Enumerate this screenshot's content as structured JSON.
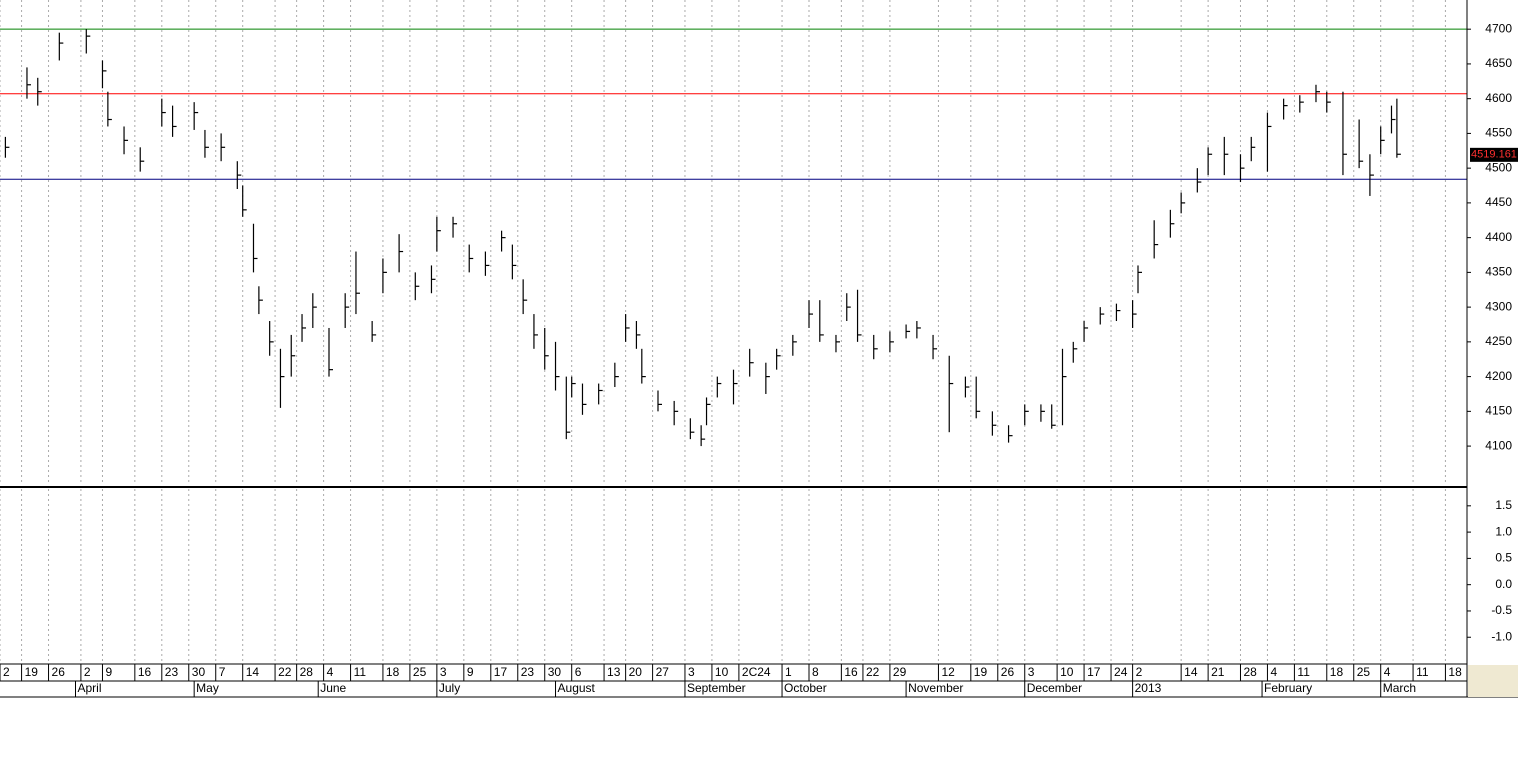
{
  "chart_data": [
    {
      "type": "ohlc",
      "color": "#000000",
      "xlim": [
        0,
        272
      ],
      "ylim": [
        4044,
        4742
      ],
      "yticks": [
        4100,
        4150,
        4200,
        4250,
        4300,
        4350,
        4400,
        4450,
        4500,
        4550,
        4600,
        4650,
        4700
      ],
      "hlines": [
        {
          "value": 4700,
          "color": "#008000"
        },
        {
          "value": 4607,
          "color": "#ff0000"
        },
        {
          "value": 4484,
          "color": "#000080"
        }
      ],
      "last_price": 4519.161,
      "xticks": [
        {
          "value": 0,
          "label": "2"
        },
        {
          "value": 4,
          "label": "19"
        },
        {
          "value": 9,
          "label": "26"
        },
        {
          "value": 15,
          "label": "2"
        },
        {
          "value": 19,
          "label": "9"
        },
        {
          "value": 25,
          "label": "16"
        },
        {
          "value": 30,
          "label": "23"
        },
        {
          "value": 35,
          "label": "30"
        },
        {
          "value": 40,
          "label": "7"
        },
        {
          "value": 45,
          "label": "14"
        },
        {
          "value": 51,
          "label": "22"
        },
        {
          "value": 55,
          "label": "28"
        },
        {
          "value": 60,
          "label": "4"
        },
        {
          "value": 65,
          "label": "11"
        },
        {
          "value": 71,
          "label": "18"
        },
        {
          "value": 76,
          "label": "25"
        },
        {
          "value": 81,
          "label": "3"
        },
        {
          "value": 86,
          "label": "9"
        },
        {
          "value": 91,
          "label": "17"
        },
        {
          "value": 96,
          "label": "23"
        },
        {
          "value": 101,
          "label": "30"
        },
        {
          "value": 106,
          "label": "6"
        },
        {
          "value": 112,
          "label": "13"
        },
        {
          "value": 116,
          "label": "20"
        },
        {
          "value": 121,
          "label": "27"
        },
        {
          "value": 127,
          "label": "3"
        },
        {
          "value": 132,
          "label": "10"
        },
        {
          "value": 137,
          "label": "2C24"
        },
        {
          "value": 145,
          "label": "1"
        },
        {
          "value": 150,
          "label": "8"
        },
        {
          "value": 156,
          "label": "16"
        },
        {
          "value": 160,
          "label": "22"
        },
        {
          "value": 165,
          "label": "29"
        },
        {
          "value": 174,
          "label": "12"
        },
        {
          "value": 180,
          "label": "19"
        },
        {
          "value": 185,
          "label": "26"
        },
        {
          "value": 190,
          "label": "3"
        },
        {
          "value": 196,
          "label": "10"
        },
        {
          "value": 201,
          "label": "17"
        },
        {
          "value": 206,
          "label": "24"
        },
        {
          "value": 210,
          "label": "2"
        },
        {
          "value": 219,
          "label": "14"
        },
        {
          "value": 224,
          "label": "21"
        },
        {
          "value": 230,
          "label": "28"
        },
        {
          "value": 235,
          "label": "4"
        },
        {
          "value": 240,
          "label": "11"
        },
        {
          "value": 246,
          "label": "18"
        },
        {
          "value": 251,
          "label": "25"
        },
        {
          "value": 256,
          "label": "4"
        },
        {
          "value": 262,
          "label": "11"
        },
        {
          "value": 268,
          "label": "18"
        }
      ],
      "month_ticks": [
        {
          "value": 14,
          "label": "April"
        },
        {
          "value": 36,
          "label": "May"
        },
        {
          "value": 59,
          "label": "June"
        },
        {
          "value": 81,
          "label": "July"
        },
        {
          "value": 103,
          "label": "August"
        },
        {
          "value": 127,
          "label": "September"
        },
        {
          "value": 145,
          "label": "October"
        },
        {
          "value": 168,
          "label": "November"
        },
        {
          "value": 190,
          "label": "December"
        },
        {
          "value": 210,
          "label": "2013"
        },
        {
          "value": 234,
          "label": "February"
        },
        {
          "value": 256,
          "label": "March"
        }
      ],
      "x": [
        1,
        5,
        7,
        11,
        16,
        19,
        20,
        23,
        26,
        30,
        32,
        36,
        38,
        41,
        44,
        45,
        47,
        48,
        50,
        52,
        54,
        56,
        58,
        61,
        64,
        66,
        69,
        71,
        74,
        77,
        80,
        81,
        84,
        87,
        90,
        93,
        95,
        97,
        99,
        101,
        103,
        105,
        106,
        108,
        111,
        114,
        116,
        118,
        119,
        122,
        125,
        128,
        130,
        131,
        133,
        136,
        139,
        142,
        144,
        147,
        150,
        152,
        155,
        157,
        159,
        162,
        165,
        168,
        170,
        173,
        176,
        179,
        181,
        184,
        187,
        190,
        193,
        195,
        197,
        199,
        201,
        204,
        207,
        210,
        211,
        214,
        217,
        219,
        222,
        224,
        227,
        230,
        232,
        235,
        238,
        241,
        244,
        246,
        249,
        252,
        254,
        256,
        258,
        259
      ],
      "close": [
        4530,
        4620,
        4610,
        4680,
        4690,
        4640,
        4570,
        4540,
        4510,
        4580,
        4560,
        4580,
        4530,
        4530,
        4490,
        4440,
        4370,
        4310,
        4250,
        4200,
        4230,
        4270,
        4300,
        4210,
        4300,
        4320,
        4260,
        4350,
        4380,
        4330,
        4340,
        4410,
        4420,
        4370,
        4360,
        4400,
        4360,
        4310,
        4260,
        4230,
        4200,
        4120,
        4190,
        4160,
        4180,
        4200,
        4270,
        4260,
        4200,
        4160,
        4150,
        4120,
        4110,
        4160,
        4190,
        4190,
        4220,
        4200,
        4230,
        4250,
        4290,
        4260,
        4250,
        4300,
        4260,
        4240,
        4250,
        4265,
        4270,
        4240,
        4190,
        4185,
        4150,
        4130,
        4115,
        4150,
        4150,
        4130,
        4200,
        4240,
        4270,
        4290,
        4295,
        4290,
        4350,
        4390,
        4420,
        4450,
        4480,
        4520,
        4520,
        4500,
        4530,
        4560,
        4590,
        4595,
        4610,
        4595,
        4520,
        4510,
        4490,
        4540,
        4570,
        4520
      ],
      "high": [
        4545,
        4645,
        4630,
        4695,
        4700,
        4655,
        4610,
        4560,
        4530,
        4600,
        4590,
        4595,
        4555,
        4550,
        4510,
        4475,
        4420,
        4330,
        4280,
        4240,
        4260,
        4290,
        4320,
        4270,
        4320,
        4380,
        4280,
        4370,
        4405,
        4350,
        4360,
        4430,
        4430,
        4390,
        4380,
        4410,
        4390,
        4340,
        4290,
        4270,
        4250,
        4200,
        4200,
        4190,
        4190,
        4220,
        4290,
        4280,
        4240,
        4180,
        4165,
        4140,
        4130,
        4170,
        4200,
        4210,
        4240,
        4220,
        4240,
        4260,
        4310,
        4310,
        4260,
        4320,
        4325,
        4260,
        4265,
        4275,
        4280,
        4260,
        4230,
        4200,
        4200,
        4150,
        4130,
        4160,
        4160,
        4160,
        4240,
        4250,
        4280,
        4300,
        4305,
        4310,
        4360,
        4425,
        4440,
        4465,
        4500,
        4530,
        4545,
        4520,
        4545,
        4580,
        4600,
        4605,
        4620,
        4610,
        4610,
        4570,
        4520,
        4560,
        4590,
        4600
      ],
      "low": [
        4515,
        4600,
        4590,
        4655,
        4665,
        4615,
        4560,
        4520,
        4495,
        4560,
        4545,
        4555,
        4515,
        4510,
        4470,
        4430,
        4350,
        4290,
        4230,
        4155,
        4200,
        4250,
        4270,
        4200,
        4270,
        4290,
        4250,
        4320,
        4350,
        4310,
        4320,
        4380,
        4400,
        4350,
        4345,
        4380,
        4340,
        4290,
        4240,
        4210,
        4180,
        4110,
        4170,
        4145,
        4160,
        4185,
        4250,
        4240,
        4190,
        4150,
        4130,
        4110,
        4100,
        4130,
        4170,
        4160,
        4200,
        4175,
        4210,
        4230,
        4270,
        4250,
        4235,
        4280,
        4250,
        4225,
        4235,
        4255,
        4255,
        4225,
        4120,
        4170,
        4140,
        4115,
        4105,
        4130,
        4135,
        4125,
        4130,
        4220,
        4250,
        4275,
        4280,
        4270,
        4320,
        4370,
        4400,
        4435,
        4465,
        4490,
        4490,
        4480,
        4510,
        4495,
        4570,
        4580,
        4595,
        4580,
        4490,
        4500,
        4460,
        4520,
        4550,
        4515
      ]
    },
    {
      "type": "line",
      "xlim": [
        0,
        272
      ],
      "ylim": [
        -1.49,
        1.82
      ],
      "yticks": [
        1.5,
        {
          "value": 1,
          "label": "1.0"
        },
        0.5,
        {
          "value": 0,
          "label": "0.0"
        },
        -0.5,
        {
          "value": -1,
          "label": "-1.0"
        }
      ]
    }
  ]
}
